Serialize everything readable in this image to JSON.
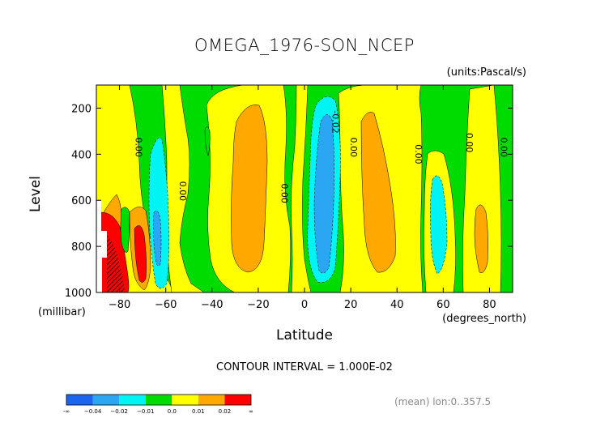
{
  "chart_data": {
    "type": "heatmap",
    "plot_style": "filled contour",
    "title": "OMEGA_1976-SON_NCEP",
    "units_label": "(units:Pascal/s)",
    "xlabel": "Latitude",
    "ylabel": "Level",
    "x_unit_label": "(degrees_north)",
    "y_unit_label": "(millibar)",
    "xlim": [
      -90,
      90
    ],
    "ylim": [
      1000,
      100
    ],
    "y_reversed": true,
    "x_ticks": [
      -80,
      -60,
      -40,
      -20,
      0,
      20,
      40,
      60,
      80
    ],
    "x_tick_labels": [
      "−80",
      "−60",
      "−40",
      "−20",
      "0",
      "20",
      "40",
      "60",
      "80"
    ],
    "y_ticks": [
      200,
      400,
      600,
      800,
      1000
    ],
    "y_tick_labels": [
      "200",
      "400",
      "600",
      "800",
      "1000"
    ],
    "contour_interval_text": "CONTOUR INTERVAL = 1.000E-02",
    "mean_text": "(mean) lon:0..357.5",
    "contour_labels": [
      {
        "text": "0.00",
        "lat": -73,
        "lev": 370
      },
      {
        "text": "0.00",
        "lat": -54,
        "lev": 560
      },
      {
        "text": "0.00",
        "lat": -10,
        "lev": 570
      },
      {
        "text": "-0.02",
        "lat": 12,
        "lev": 260
      },
      {
        "text": "0.00",
        "lat": 20,
        "lev": 370
      },
      {
        "text": "0.00",
        "lat": 48,
        "lev": 400
      },
      {
        "text": "0.00",
        "lat": 70,
        "lev": 350
      },
      {
        "text": "0.00",
        "lat": 85,
        "lev": 370
      }
    ],
    "colorbar": {
      "colors": [
        "#1a64f0",
        "#2ba6f2",
        "#00f4f4",
        "#00dc00",
        "#ffff00",
        "#ffa800",
        "#ff0000"
      ],
      "labels": [
        "-∞",
        "−0.04",
        "−0.02",
        "−0.01",
        "0.0",
        "0.01",
        "0.02",
        "∞"
      ]
    },
    "regions": [
      {
        "name": "subsidence-south-pole",
        "level": "0.00 to 0.01",
        "color": "#ffff00",
        "lat": [
          -89,
          -64
        ],
        "lev": [
          100,
          1000
        ]
      },
      {
        "name": "ascent-south-60",
        "level": "-0.02 to -0.01",
        "color": "#00f4f4",
        "center": [
          -61,
          740
        ]
      },
      {
        "name": "ascent-south-60-core",
        "level": "-0.04 to -0.02",
        "color": "#2ba6f2",
        "center": [
          -61,
          850
        ]
      },
      {
        "name": "subsidence-south-subtropics",
        "level": "0.01 to 0.02",
        "color": "#ffa800",
        "center": [
          -25,
          520
        ]
      },
      {
        "name": "itcz-ascent",
        "level": "-0.02 to -0.01",
        "color": "#00f4f4",
        "center": [
          10,
          520
        ]
      },
      {
        "name": "itcz-ascent-core",
        "level": "-0.04 to -0.02",
        "color": "#2ba6f2",
        "center": [
          9,
          540
        ]
      },
      {
        "name": "subsidence-north-subtropics",
        "level": "0.01 to 0.02",
        "color": "#ffa800",
        "center": [
          32,
          520
        ]
      },
      {
        "name": "ascent-north-55",
        "level": "-0.02 to -0.01",
        "color": "#00f4f4",
        "center": [
          56,
          760
        ]
      },
      {
        "name": "subsidence-north-75",
        "level": "0.01 to 0.02",
        "color": "#ffa800",
        "center": [
          77,
          800
        ]
      },
      {
        "name": "strong-subsidence-antarctic",
        "level": "> 0.02",
        "color": "#ff0000",
        "center": [
          -80,
          800
        ]
      },
      {
        "name": "no-data-topography",
        "level": "missing",
        "color": "#ffffff",
        "lat": [
          -90,
          -86
        ],
        "lev": [
          600,
          1000
        ]
      }
    ]
  }
}
